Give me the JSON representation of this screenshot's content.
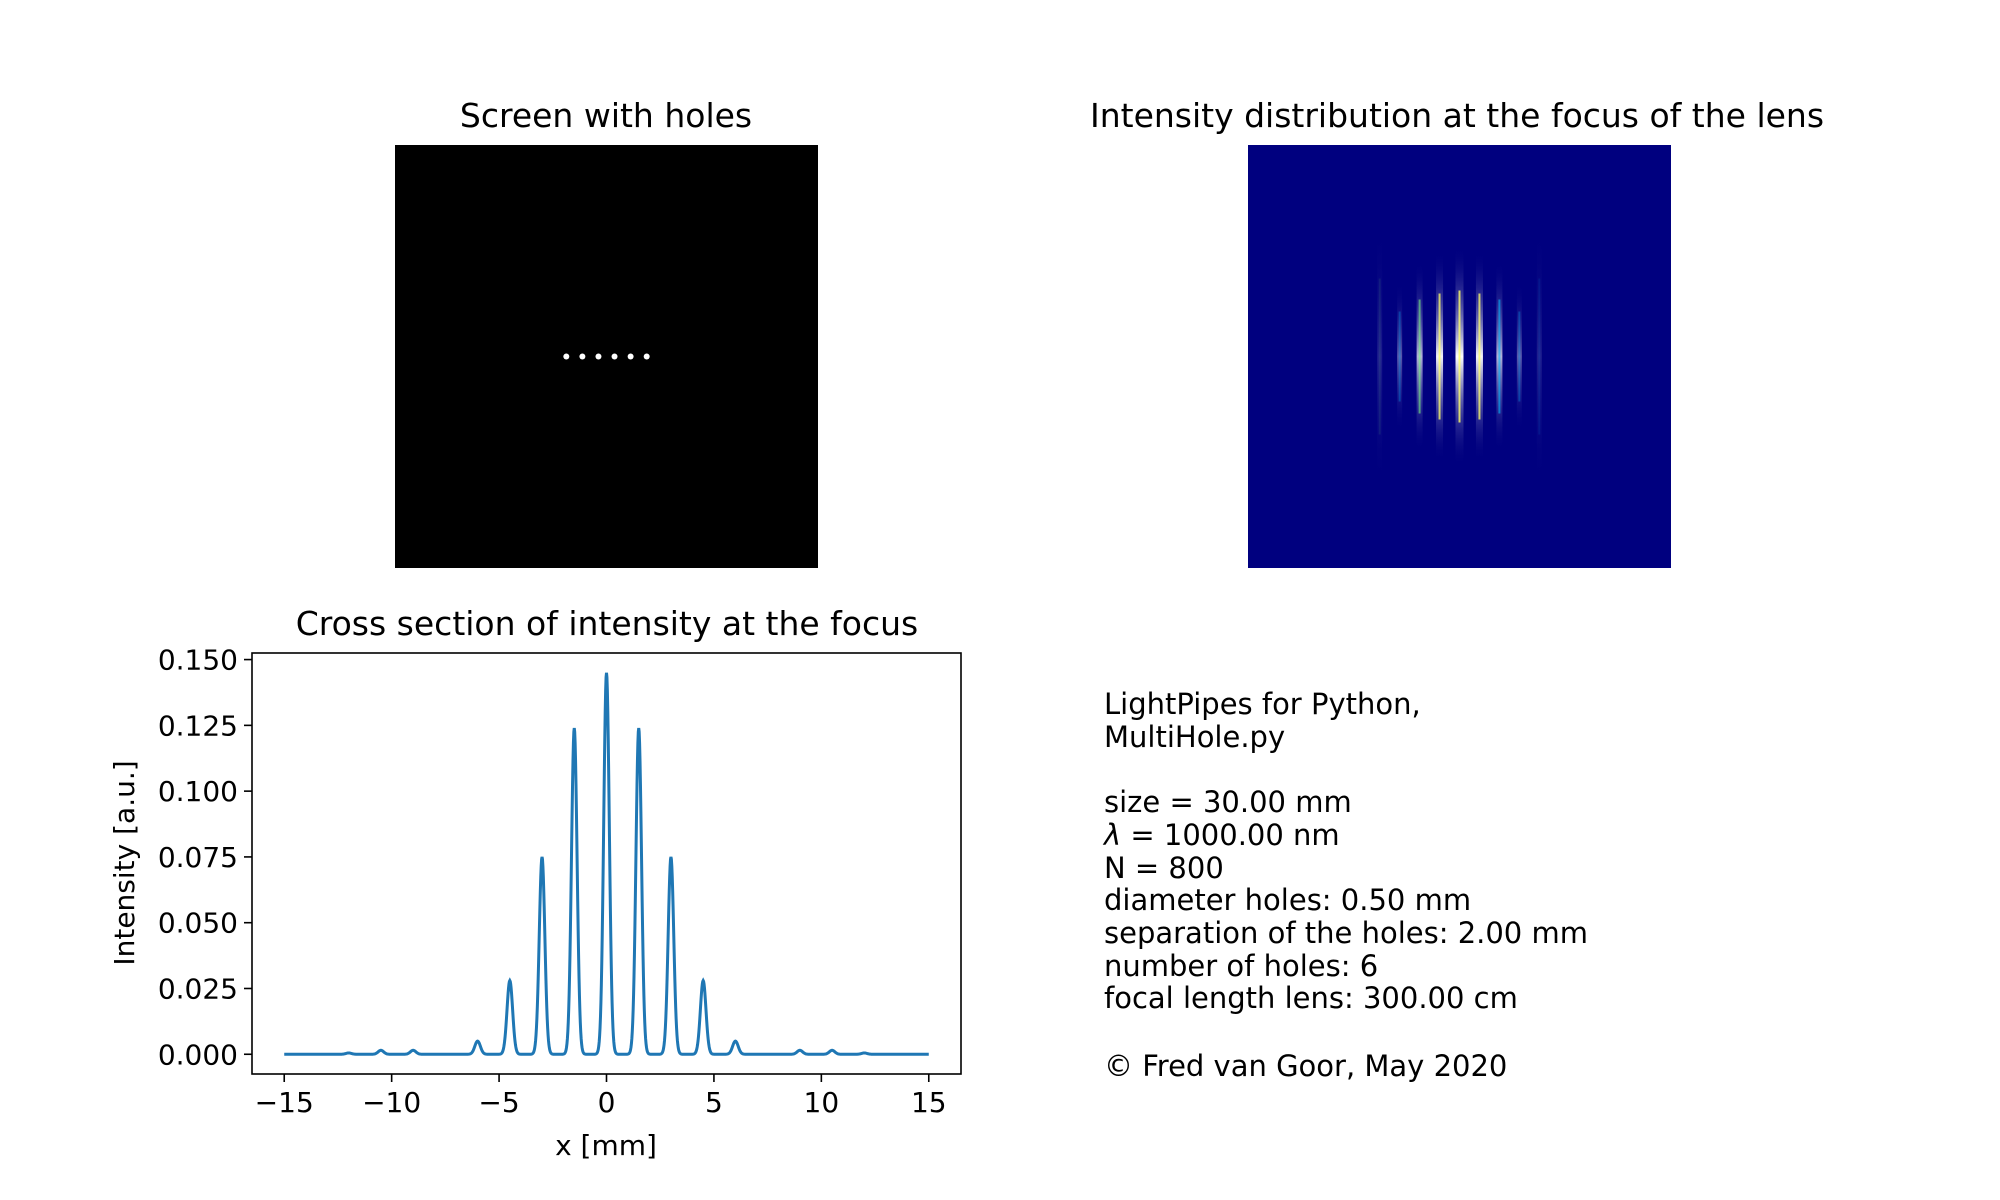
{
  "panels": {
    "screen_title": "Screen with holes",
    "intensity_title": "Intensity distribution at the focus of the lens",
    "cross_title": "Cross section of intensity at the focus"
  },
  "info": {
    "line1": "LightPipes for Python,",
    "line2": "MultiHole.py",
    "size": "size = 30.00 mm",
    "lambda_symbol": "λ",
    "lambda_value": " = 1000.00 nm",
    "n": "N = 800",
    "diameter": "diameter holes: 0.50 mm",
    "separation": "separation of the holes: 2.00 mm",
    "number": "number of holes: 6",
    "focal": "focal length lens: 300.00 cm",
    "copyright": "© Fred van Goor, May 2020"
  },
  "colors": {
    "line": "#1f77b4",
    "intensity_background": "#00007f",
    "screen_background": "#000000",
    "holes": "#ffffff"
  },
  "screen_holes": {
    "count": 6,
    "x_mm": [
      -5.0,
      -3.0,
      -1.0,
      1.0,
      3.0,
      5.0
    ]
  },
  "chart_data": {
    "type": "line",
    "title": "Cross section of intensity at the focus",
    "xlabel": "x [mm]",
    "ylabel": "Intensity [a.u.]",
    "xlim": [
      -16.5,
      16.5
    ],
    "ylim": [
      -0.0075,
      0.1525
    ],
    "xticks": [
      -15,
      -10,
      -5,
      0,
      5,
      10,
      15
    ],
    "xtick_labels": [
      "−15",
      "−10",
      "−5",
      "0",
      "5",
      "10",
      "15"
    ],
    "yticks": [
      0.0,
      0.025,
      0.05,
      0.075,
      0.1,
      0.125,
      0.15
    ],
    "ytick_labels": [
      "0.000",
      "0.025",
      "0.050",
      "0.075",
      "0.100",
      "0.125",
      "0.150"
    ],
    "grid": false,
    "peaks": [
      {
        "x": 0.0,
        "y": 0.145
      },
      {
        "x": -1.5,
        "y": 0.124
      },
      {
        "x": 1.5,
        "y": 0.124
      },
      {
        "x": -3.0,
        "y": 0.075
      },
      {
        "x": 3.0,
        "y": 0.075
      },
      {
        "x": -4.5,
        "y": 0.028
      },
      {
        "x": 4.5,
        "y": 0.028
      },
      {
        "x": -6.0,
        "y": 0.005
      },
      {
        "x": 6.0,
        "y": 0.005
      },
      {
        "x": -9.0,
        "y": 0.0015
      },
      {
        "x": 9.0,
        "y": 0.0015
      },
      {
        "x": -10.5,
        "y": 0.0015
      },
      {
        "x": 10.5,
        "y": 0.0015
      },
      {
        "x": -12.0,
        "y": 0.0005
      },
      {
        "x": 12.0,
        "y": 0.0005
      }
    ],
    "x_range": [
      -15,
      15
    ],
    "peak_width_mm": 0.13
  }
}
